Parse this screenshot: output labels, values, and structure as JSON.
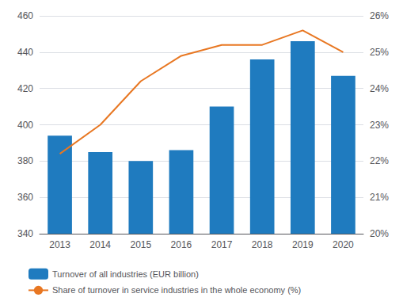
{
  "chart_data": {
    "type": "bar",
    "categories": [
      "2013",
      "2014",
      "2015",
      "2016",
      "2017",
      "2018",
      "2019",
      "2020"
    ],
    "series": [
      {
        "name": "Turnover of all industries (EUR billion)",
        "type": "bar",
        "color": "#1f7bbf",
        "values": [
          394,
          385,
          380,
          386,
          410,
          436,
          446,
          427
        ]
      },
      {
        "name": "Share of turnover in service industries in the whole economy (%)",
        "type": "line",
        "color": "#e87722",
        "axis": "y2",
        "values": [
          22.2,
          23.0,
          24.2,
          24.9,
          25.2,
          25.2,
          25.6,
          25.0
        ]
      }
    ],
    "ylim": [
      340,
      460
    ],
    "yticks": [
      340,
      360,
      380,
      400,
      420,
      440,
      460
    ],
    "y2lim": [
      20,
      26
    ],
    "y2ticks": [
      {
        "value": 20,
        "label": "20%"
      },
      {
        "value": 21,
        "label": "21%"
      },
      {
        "value": 22,
        "label": "22%"
      },
      {
        "value": 23,
        "label": "23%"
      },
      {
        "value": 24,
        "label": "24%"
      },
      {
        "value": 25,
        "label": "25%"
      },
      {
        "value": 26,
        "label": "26%"
      }
    ],
    "grid": true,
    "legend": "lower left"
  }
}
